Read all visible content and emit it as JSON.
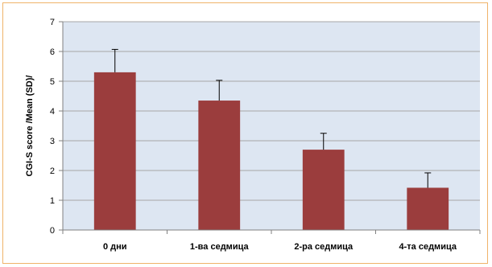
{
  "chart_data": {
    "type": "bar",
    "title": "",
    "xlabel": "",
    "ylabel": "CGI-S score  /Mean (SD)/",
    "categories": [
      "0 дни",
      "1-ва седмица",
      "2-ра седмица",
      "4-та седмица"
    ],
    "series": [
      {
        "values": [
          5.3,
          4.35,
          2.7,
          1.42
        ],
        "error": [
          0.77,
          0.68,
          0.55,
          0.5
        ]
      }
    ],
    "ylim": [
      0,
      7
    ],
    "yticks": [
      0,
      1,
      2,
      3,
      4,
      5,
      6,
      7
    ],
    "grid": true,
    "legend": "none",
    "colors": {
      "bar": "#9b3d3d",
      "plot_bg": "#dde6f2",
      "grid": "#a7a7a7",
      "border": "#f0b36a"
    }
  }
}
